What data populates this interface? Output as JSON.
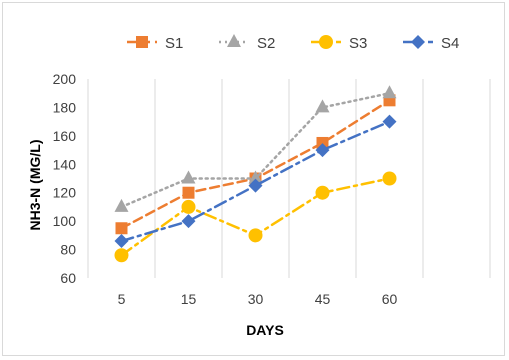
{
  "chart_data": {
    "type": "line",
    "categories": [
      "5",
      "15",
      "30",
      "45",
      "60"
    ],
    "ylabel": "NH3-N (MG/L)",
    "xlabel": "DAYS",
    "ylim": [
      60,
      200
    ],
    "yticks": [
      "60",
      "80",
      "100",
      "120",
      "140",
      "160",
      "180",
      "200"
    ],
    "grid": "vertical gridlines",
    "legend_position": "top",
    "series": [
      {
        "name": "S1",
        "values": [
          95,
          120,
          130,
          155,
          185
        ],
        "color": "#ED7D31",
        "dash": "dashed",
        "marker": "square"
      },
      {
        "name": "S2",
        "values": [
          110,
          130,
          130,
          180,
          190
        ],
        "color": "#A5A5A5",
        "dash": "dotted",
        "marker": "triangle"
      },
      {
        "name": "S3",
        "values": [
          76,
          110,
          90,
          120,
          130
        ],
        "color": "#FFC000",
        "dash": "dashdot",
        "marker": "circle"
      },
      {
        "name": "S4",
        "values": [
          86,
          100,
          125,
          150,
          170
        ],
        "color": "#4472C4",
        "dash": "dashdot",
        "marker": "diamond"
      }
    ]
  }
}
